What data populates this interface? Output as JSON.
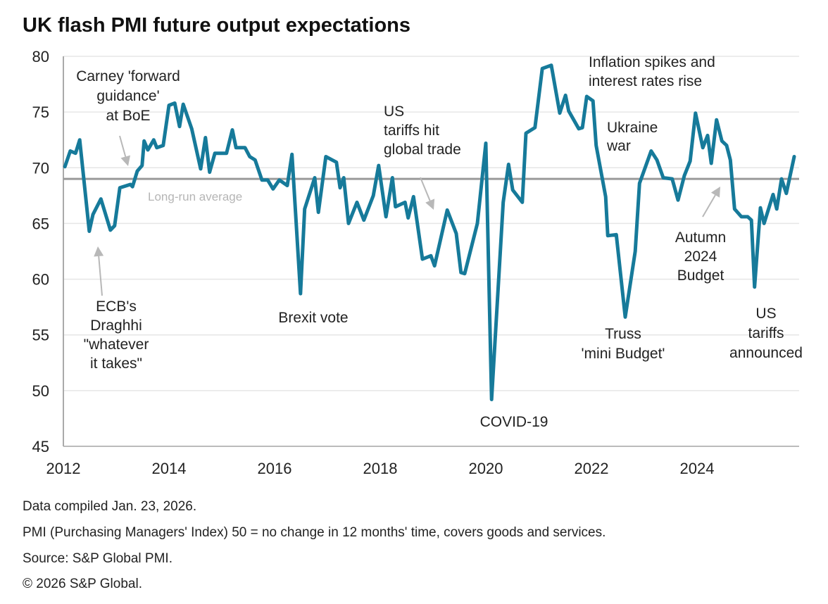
{
  "chart_data": {
    "type": "line",
    "title": "UK flash PMI future output expectations",
    "xlabel": "",
    "ylabel": "",
    "xlim": [
      2012,
      2026
    ],
    "ylim": [
      45,
      80
    ],
    "grid": true,
    "y_ticks": [
      "45",
      "50",
      "55",
      "60",
      "65",
      "70",
      "75",
      "80"
    ],
    "y_tick_values": [
      45,
      50,
      55,
      60,
      65,
      70,
      75,
      80
    ],
    "x_ticks": [
      "2012",
      "2014",
      "2016",
      "2018",
      "2020",
      "2022",
      "2024"
    ],
    "x_tick_values": [
      2012,
      2014,
      2016,
      2018,
      2020,
      2022,
      2024
    ],
    "reference_line": {
      "label": "Long-run average",
      "value": 69
    },
    "colors": {
      "series": "#167a9a",
      "reference": "#9a9a9a",
      "grid": "#e6e6e6",
      "arrow": "#b8b8b8"
    },
    "series": [
      {
        "name": "Future output expectations",
        "points": [
          [
            2012.03,
            70.1
          ],
          [
            2012.13,
            71.5
          ],
          [
            2012.23,
            71.3
          ],
          [
            2012.31,
            72.5
          ],
          [
            2012.49,
            64.3
          ],
          [
            2012.56,
            65.8
          ],
          [
            2012.71,
            67.2
          ],
          [
            2012.89,
            64.4
          ],
          [
            2012.97,
            64.8
          ],
          [
            2013.07,
            68.2
          ],
          [
            2013.27,
            68.5
          ],
          [
            2013.31,
            68.3
          ],
          [
            2013.4,
            69.7
          ],
          [
            2013.49,
            70.2
          ],
          [
            2013.53,
            72.4
          ],
          [
            2013.6,
            71.6
          ],
          [
            2013.71,
            72.5
          ],
          [
            2013.77,
            71.8
          ],
          [
            2013.89,
            72.0
          ],
          [
            2014.0,
            75.6
          ],
          [
            2014.11,
            75.8
          ],
          [
            2014.2,
            73.7
          ],
          [
            2014.27,
            75.7
          ],
          [
            2014.43,
            73.5
          ],
          [
            2014.6,
            69.9
          ],
          [
            2014.69,
            72.7
          ],
          [
            2014.77,
            69.6
          ],
          [
            2014.87,
            71.3
          ],
          [
            2015.09,
            71.3
          ],
          [
            2015.2,
            73.4
          ],
          [
            2015.27,
            71.8
          ],
          [
            2015.44,
            71.8
          ],
          [
            2015.53,
            71.0
          ],
          [
            2015.63,
            70.7
          ],
          [
            2015.76,
            68.9
          ],
          [
            2015.87,
            68.9
          ],
          [
            2015.97,
            68.1
          ],
          [
            2016.09,
            68.9
          ],
          [
            2016.24,
            68.4
          ],
          [
            2016.33,
            71.2
          ],
          [
            2016.49,
            58.7
          ],
          [
            2016.57,
            66.3
          ],
          [
            2016.76,
            69.1
          ],
          [
            2016.83,
            66.0
          ],
          [
            2016.97,
            71.0
          ],
          [
            2017.17,
            70.5
          ],
          [
            2017.24,
            68.2
          ],
          [
            2017.31,
            69.1
          ],
          [
            2017.4,
            65.0
          ],
          [
            2017.56,
            66.9
          ],
          [
            2017.69,
            65.3
          ],
          [
            2017.87,
            67.5
          ],
          [
            2017.97,
            70.2
          ],
          [
            2018.11,
            65.6
          ],
          [
            2018.23,
            69.1
          ],
          [
            2018.29,
            66.5
          ],
          [
            2018.47,
            66.9
          ],
          [
            2018.53,
            65.5
          ],
          [
            2018.63,
            67.4
          ],
          [
            2018.8,
            61.8
          ],
          [
            2018.96,
            62.1
          ],
          [
            2019.03,
            61.2
          ],
          [
            2019.27,
            66.2
          ],
          [
            2019.44,
            64.1
          ],
          [
            2019.53,
            60.6
          ],
          [
            2019.6,
            60.5
          ],
          [
            2019.84,
            65.0
          ],
          [
            2020.0,
            72.2
          ],
          [
            2020.11,
            49.2
          ],
          [
            2020.33,
            66.9
          ],
          [
            2020.43,
            70.3
          ],
          [
            2020.51,
            68.0
          ],
          [
            2020.69,
            66.9
          ],
          [
            2020.76,
            73.1
          ],
          [
            2020.93,
            73.6
          ],
          [
            2021.07,
            78.9
          ],
          [
            2021.24,
            79.2
          ],
          [
            2021.4,
            74.9
          ],
          [
            2021.51,
            76.5
          ],
          [
            2021.57,
            75.1
          ],
          [
            2021.76,
            73.5
          ],
          [
            2021.83,
            73.6
          ],
          [
            2021.91,
            76.4
          ],
          [
            2022.03,
            76.0
          ],
          [
            2022.09,
            72.0
          ],
          [
            2022.27,
            67.4
          ],
          [
            2022.31,
            63.9
          ],
          [
            2022.47,
            64.0
          ],
          [
            2022.64,
            56.6
          ],
          [
            2022.83,
            62.5
          ],
          [
            2022.91,
            68.6
          ],
          [
            2023.13,
            71.5
          ],
          [
            2023.24,
            70.7
          ],
          [
            2023.36,
            69.1
          ],
          [
            2023.53,
            69.0
          ],
          [
            2023.64,
            67.1
          ],
          [
            2023.76,
            69.3
          ],
          [
            2023.87,
            70.6
          ],
          [
            2023.97,
            74.9
          ],
          [
            2024.11,
            71.8
          ],
          [
            2024.2,
            72.9
          ],
          [
            2024.27,
            70.4
          ],
          [
            2024.37,
            74.3
          ],
          [
            2024.47,
            72.4
          ],
          [
            2024.56,
            72.0
          ],
          [
            2024.63,
            70.7
          ],
          [
            2024.71,
            66.3
          ],
          [
            2024.84,
            65.6
          ],
          [
            2024.96,
            65.6
          ],
          [
            2025.03,
            65.3
          ],
          [
            2025.09,
            59.3
          ],
          [
            2025.2,
            66.4
          ],
          [
            2025.27,
            65.0
          ],
          [
            2025.44,
            67.6
          ],
          [
            2025.51,
            66.3
          ],
          [
            2025.6,
            69.0
          ],
          [
            2025.69,
            67.7
          ],
          [
            2025.84,
            71.0
          ]
        ]
      }
    ],
    "annotations": {
      "carney": [
        "Carney 'forward",
        "guidance'",
        "at BoE"
      ],
      "ecb": [
        "ECB's",
        "Draghhi",
        "\"whatever",
        "it takes\""
      ],
      "brexit": [
        "Brexit vote"
      ],
      "us_trade": [
        "US",
        "tariffs hit",
        "global trade"
      ],
      "covid": [
        "COVID-19"
      ],
      "inflation": [
        "Inflation  spikes and",
        "interest rates rise"
      ],
      "ukraine": [
        "Ukraine",
        "war"
      ],
      "truss": [
        "Truss",
        "'mini Budget'"
      ],
      "autumn": [
        "Autumn",
        "2024",
        "Budget"
      ],
      "us_tariffs": [
        "US",
        "tariffs",
        "announced"
      ]
    }
  },
  "footer": [
    "Data compiled Jan. 23, 2026.",
    "PMI (Purchasing Managers' Index) 50 = no change in 12 months' time, covers goods and services.",
    "Source: S&P Global PMI.",
    "© 2026 S&P Global."
  ]
}
